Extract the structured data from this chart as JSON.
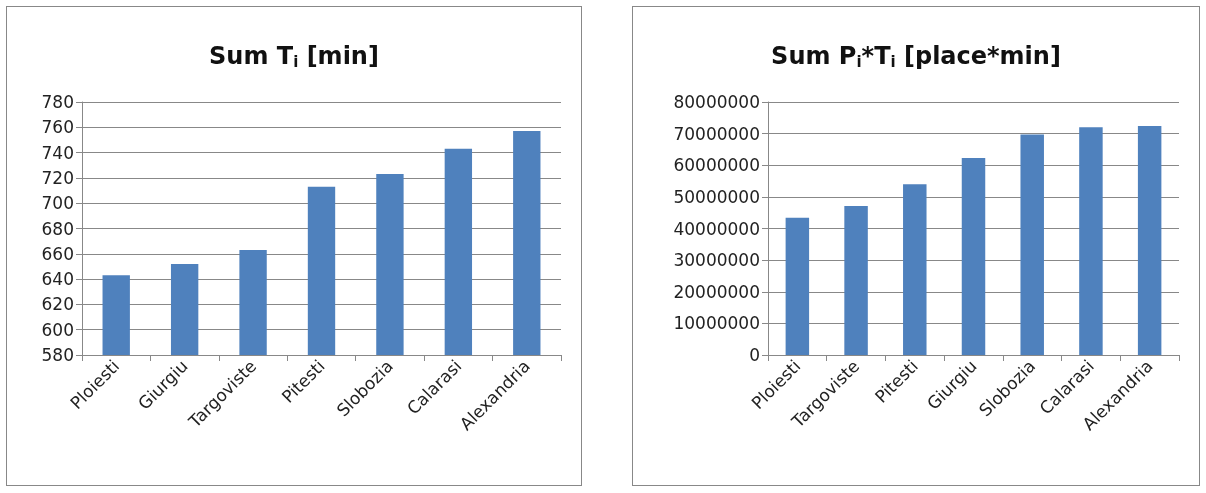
{
  "chart_data": [
    {
      "type": "bar",
      "title": "Sum T$_{i}$ [min]",
      "categories": [
        "Ploiesti",
        "Giurgiu",
        "Targoviste",
        "Pitesti",
        "Slobozia",
        "Calarasi",
        "Alexandria"
      ],
      "values": [
        643,
        652,
        663,
        713,
        723,
        743,
        757
      ],
      "color": "#4f81bd",
      "ylim": [
        580,
        780
      ],
      "yticks": [
        580,
        600,
        620,
        640,
        660,
        680,
        700,
        720,
        740,
        760,
        780
      ],
      "grid": "y"
    },
    {
      "type": "bar",
      "title": "Sum P$_{i}$*T$_{i}$ [place*min]",
      "categories": [
        "Ploiesti",
        "Targoviste",
        "Pitesti",
        "Giurgiu",
        "Slobozia",
        "Calarasi",
        "Alexandria"
      ],
      "values": [
        43400000,
        47100000,
        54000000,
        62300000,
        69700000,
        72000000,
        72400000
      ],
      "color": "#4f81bd",
      "ylim": [
        0,
        80000000
      ],
      "yticks": [
        0,
        10000000,
        20000000,
        30000000,
        40000000,
        50000000,
        60000000,
        70000000,
        80000000
      ],
      "grid": "y"
    }
  ]
}
